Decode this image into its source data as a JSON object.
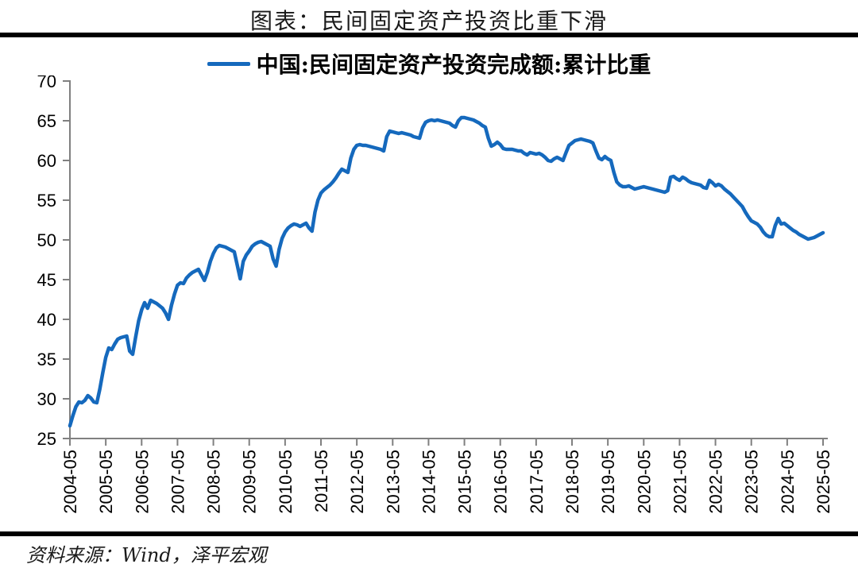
{
  "header": {
    "title": "图表：民间固定资产投资比重下滑"
  },
  "legend": {
    "label": "中国:民间固定资产投资完成额:累计比重"
  },
  "footer": {
    "source": "资料来源：Wind，泽平宏观"
  },
  "colors": {
    "line": "#1569bd",
    "axis": "#808080",
    "rule": "#000000"
  },
  "chart_data": {
    "type": "line",
    "title": "中国:民间固定资产投资完成额:累计比重",
    "unit": "percent",
    "x_start": "2004-05",
    "frequency": "monthly",
    "xlabel": "",
    "ylabel": "",
    "ylim": [
      25,
      70
    ],
    "y_ticks": [
      70,
      65,
      60,
      55,
      50,
      45,
      40,
      35,
      30,
      25
    ],
    "grid": false,
    "legend_position": "top",
    "line_color": "#1569bd",
    "x_tick_labels": [
      "2004-05",
      "2005-05",
      "2006-05",
      "2007-05",
      "2008-05",
      "2009-05",
      "2010-05",
      "2011-05",
      "2012-05",
      "2013-05",
      "2014-05",
      "2015-05",
      "2016-05",
      "2017-05",
      "2018-05",
      "2019-05",
      "2020-05",
      "2021-05",
      "2022-05",
      "2023-05",
      "2024-05",
      "2025-05"
    ],
    "values": [
      26.6,
      27.9,
      29.0,
      29.6,
      29.5,
      29.8,
      30.4,
      30.1,
      29.6,
      29.5,
      31.2,
      33.3,
      35.2,
      36.4,
      36.2,
      36.9,
      37.5,
      37.7,
      37.8,
      37.9,
      36.0,
      35.6,
      37.8,
      39.8,
      41.2,
      42.1,
      41.4,
      42.4,
      42.2,
      42.0,
      41.7,
      41.4,
      40.8,
      40.0,
      41.8,
      43.2,
      44.3,
      44.6,
      44.5,
      45.2,
      45.6,
      45.9,
      46.1,
      46.3,
      45.6,
      44.9,
      45.9,
      47.3,
      48.3,
      49.0,
      49.3,
      49.2,
      49.1,
      48.9,
      48.7,
      48.5,
      46.8,
      45.1,
      47.3,
      48.1,
      48.6,
      49.2,
      49.5,
      49.7,
      49.8,
      49.6,
      49.4,
      49.2,
      47.6,
      46.7,
      48.8,
      50.2,
      51.0,
      51.5,
      51.8,
      52.0,
      51.9,
      51.7,
      51.9,
      52.1,
      51.5,
      51.1,
      53.5,
      55.0,
      55.9,
      56.3,
      56.6,
      56.9,
      57.3,
      57.8,
      58.4,
      58.9,
      58.7,
      58.5,
      60.3,
      61.4,
      61.9,
      62.0,
      61.9,
      61.9,
      61.8,
      61.7,
      61.6,
      61.5,
      61.4,
      61.2,
      63.0,
      63.7,
      63.6,
      63.5,
      63.4,
      63.5,
      63.4,
      63.3,
      63.2,
      63.0,
      62.9,
      62.8,
      64.1,
      64.8,
      65.0,
      65.1,
      65.0,
      65.1,
      65.0,
      64.9,
      64.8,
      64.7,
      64.4,
      64.2,
      65.0,
      65.4,
      65.4,
      65.3,
      65.2,
      65.1,
      64.9,
      64.7,
      64.4,
      64.2,
      62.8,
      61.8,
      62.0,
      62.3,
      62.0,
      61.5,
      61.4,
      61.4,
      61.4,
      61.3,
      61.2,
      61.2,
      60.9,
      60.7,
      61.0,
      60.9,
      60.8,
      60.9,
      60.7,
      60.4,
      60.0,
      59.9,
      60.2,
      60.4,
      60.2,
      60.0,
      61.0,
      61.9,
      62.2,
      62.5,
      62.6,
      62.7,
      62.6,
      62.5,
      62.4,
      62.2,
      61.2,
      60.3,
      60.1,
      60.5,
      60.2,
      60.0,
      58.5,
      57.3,
      56.9,
      56.7,
      56.7,
      56.8,
      56.6,
      56.4,
      56.5,
      56.6,
      56.7,
      56.6,
      56.5,
      56.4,
      56.3,
      56.2,
      56.1,
      56.0,
      56.2,
      57.9,
      58.0,
      57.7,
      57.5,
      57.9,
      57.7,
      57.4,
      57.2,
      57.1,
      57.0,
      56.9,
      56.6,
      56.5,
      57.5,
      57.2,
      56.8,
      57.0,
      56.8,
      56.4,
      56.1,
      55.8,
      55.4,
      55.0,
      54.6,
      54.2,
      53.5,
      52.9,
      52.4,
      52.2,
      52.0,
      51.6,
      51.0,
      50.6,
      50.4,
      50.4,
      51.8,
      52.7,
      52.0,
      52.1,
      51.8,
      51.5,
      51.2,
      51.0,
      50.7,
      50.5,
      50.3,
      50.1,
      50.2,
      50.3,
      50.5,
      50.7,
      50.9
    ]
  }
}
